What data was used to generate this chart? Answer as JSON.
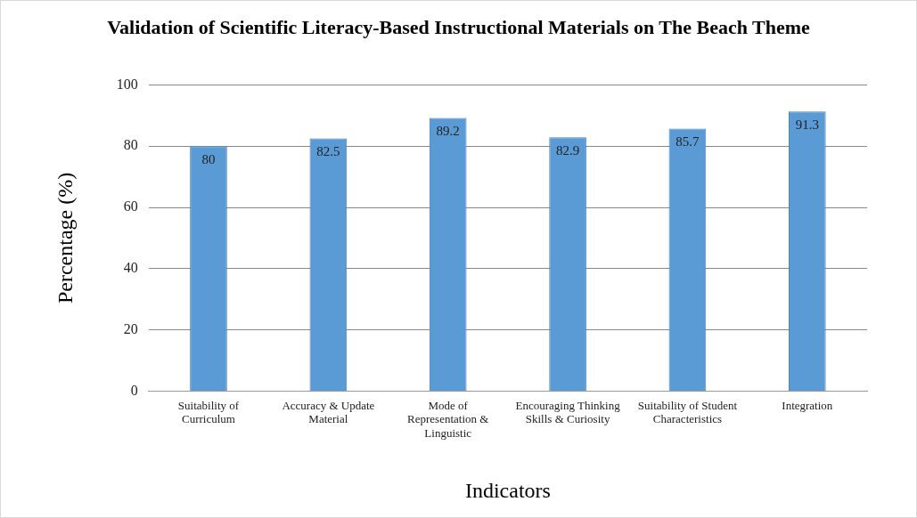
{
  "chart_data": {
    "type": "bar",
    "title": "Validation of Scientific Literacy-Based Instructional Materials on The Beach Theme",
    "xlabel": "Indicators",
    "ylabel": "Percentage (%)",
    "categories": [
      "Suitability of Curriculum",
      "Accuracy & Update Material",
      "Mode of Representation & Linguistic",
      "Encouraging Thinking Skills & Curiosity",
      "Suitability of Student Characteristics",
      "Integration"
    ],
    "values": [
      80,
      82.5,
      89.2,
      82.9,
      85.7,
      91.3
    ],
    "color": "#5b9bd5",
    "ylim": [
      0,
      100
    ],
    "yticks": [
      0,
      20,
      40,
      60,
      80,
      100
    ],
    "grid": "y",
    "data_labels": true,
    "legend": false
  }
}
